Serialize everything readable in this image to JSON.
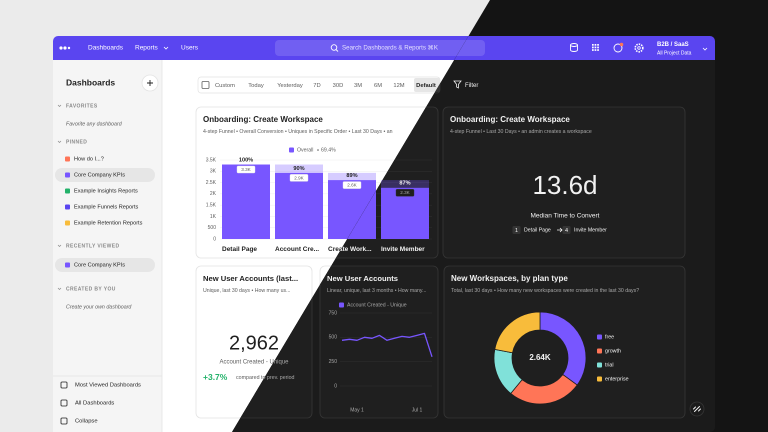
{
  "nav": {
    "items": [
      "Dashboards",
      "Reports",
      "Users"
    ],
    "search": "Search Dashboards & Reports ⌘K",
    "project": "B2B / SaaS",
    "project_sub": "All Project Data"
  },
  "sidebar": {
    "title": "Dashboards",
    "sections": [
      {
        "heading": "FAVORITES",
        "items": [
          {
            "label": "Favorite any dashboard",
            "placeholder": true
          }
        ]
      },
      {
        "heading": "PINNED",
        "items": [
          {
            "label": "How do I...?"
          },
          {
            "label": "Core Company KPIs",
            "active": true
          },
          {
            "label": "Example Insights Reports"
          },
          {
            "label": "Example Funnels Reports"
          },
          {
            "label": "Example Retention Reports"
          }
        ]
      },
      {
        "heading": "RECENTLY VIEWED",
        "items": [
          {
            "label": "Core Company KPIs",
            "active": true
          }
        ]
      },
      {
        "heading": "CREATED BY YOU",
        "items": [
          {
            "label": "Create your own dashboard",
            "placeholder": true
          }
        ]
      }
    ],
    "footer": [
      "Most Viewed Dashboards",
      "All Dashboards",
      "Collapse"
    ]
  },
  "toolbar": {
    "ranges": [
      "Custom",
      "Today",
      "Yesterday",
      "7D",
      "30D",
      "3M",
      "6M",
      "12M",
      "Default"
    ],
    "selected": 8,
    "filter": "Filter"
  },
  "cards": [
    {
      "title": "Onboarding: Create Workspace",
      "subtitle": "4-step Funnel • Overall Conversion • Uniques in Specific Order • Last 30 Days • an",
      "chart": {
        "type": "bar",
        "legend": {
          "name": "Overall",
          "value": "69.4%"
        },
        "categories": [
          "Detail Page",
          "Account Cre...",
          "Create Work...",
          "Invite Member"
        ],
        "values": [
          3300,
          2930,
          2610,
          2270
        ],
        "value_labels": [
          "3.3K",
          "2.9K",
          "2.6K",
          "2.3K"
        ],
        "percent_labels": [
          "100%",
          "90%",
          "89%",
          "87%"
        ],
        "color": "#7856ff",
        "ylim": [
          0,
          3500
        ],
        "yticks": [
          0,
          500,
          {
            "value": 1000,
            "label": "1K"
          },
          {
            "value": 1500,
            "label": "1.5K"
          },
          {
            "value": 2000,
            "label": "2K"
          },
          {
            "value": 2500,
            "label": "2.5K"
          },
          {
            "value": 3000,
            "label": "3K"
          },
          {
            "value": 3500,
            "label": "3.5K"
          }
        ]
      }
    },
    {
      "title": "Onboarding: Create Workspace",
      "subtitle": "4-step Funnel • Last 30 Days • an admin creates a workspace",
      "metric": {
        "value": "13.6d",
        "label": "Median Time to Convert",
        "steps": [
          {
            "num": 1,
            "label": "Detail Page"
          },
          {
            "num": 4,
            "label": "Invite Member"
          }
        ]
      }
    },
    {
      "title": "New User Accounts (last...",
      "subtitle": "Unique, last 30 days • How many us...",
      "metric": {
        "value": "2,962",
        "label": "Account Created - Unique",
        "change": "+3.7%",
        "compare": "compared to prev. period"
      }
    },
    {
      "title": "New User Accounts",
      "subtitle": "Linear, unique, last 3 months • How many...",
      "chart": {
        "type": "line",
        "categories": [
          null,
          null,
          "May 1",
          null,
          null,
          null,
          null,
          null,
          null,
          null,
          "Jul 1",
          null,
          null
        ],
        "series": [
          {
            "name": "Account Created - Unique",
            "color": "#7856ff",
            "values": [
              470,
              480,
              470,
              500,
              490,
              520,
              470,
              490,
              510,
              500,
              520,
              540,
              300
            ]
          }
        ],
        "ylim": [
          0,
          750
        ],
        "yticks": [
          0,
          250,
          500,
          750
        ]
      }
    },
    {
      "title": "New Workspaces, by plan type",
      "subtitle": "Total, last 30 days • How many new workspaces were created in the last 30 days?",
      "chart": {
        "type": "pie",
        "total_label": "2.64K",
        "series": [
          {
            "name": "free",
            "color": "#7856ff",
            "value": 924
          },
          {
            "name": "growth",
            "color": "#ff7557",
            "value": 686
          },
          {
            "name": "trial",
            "color": "#80e1d9",
            "value": 449
          },
          {
            "name": "enterprise",
            "color": "#f8bc3b",
            "value": 581
          }
        ]
      }
    }
  ]
}
